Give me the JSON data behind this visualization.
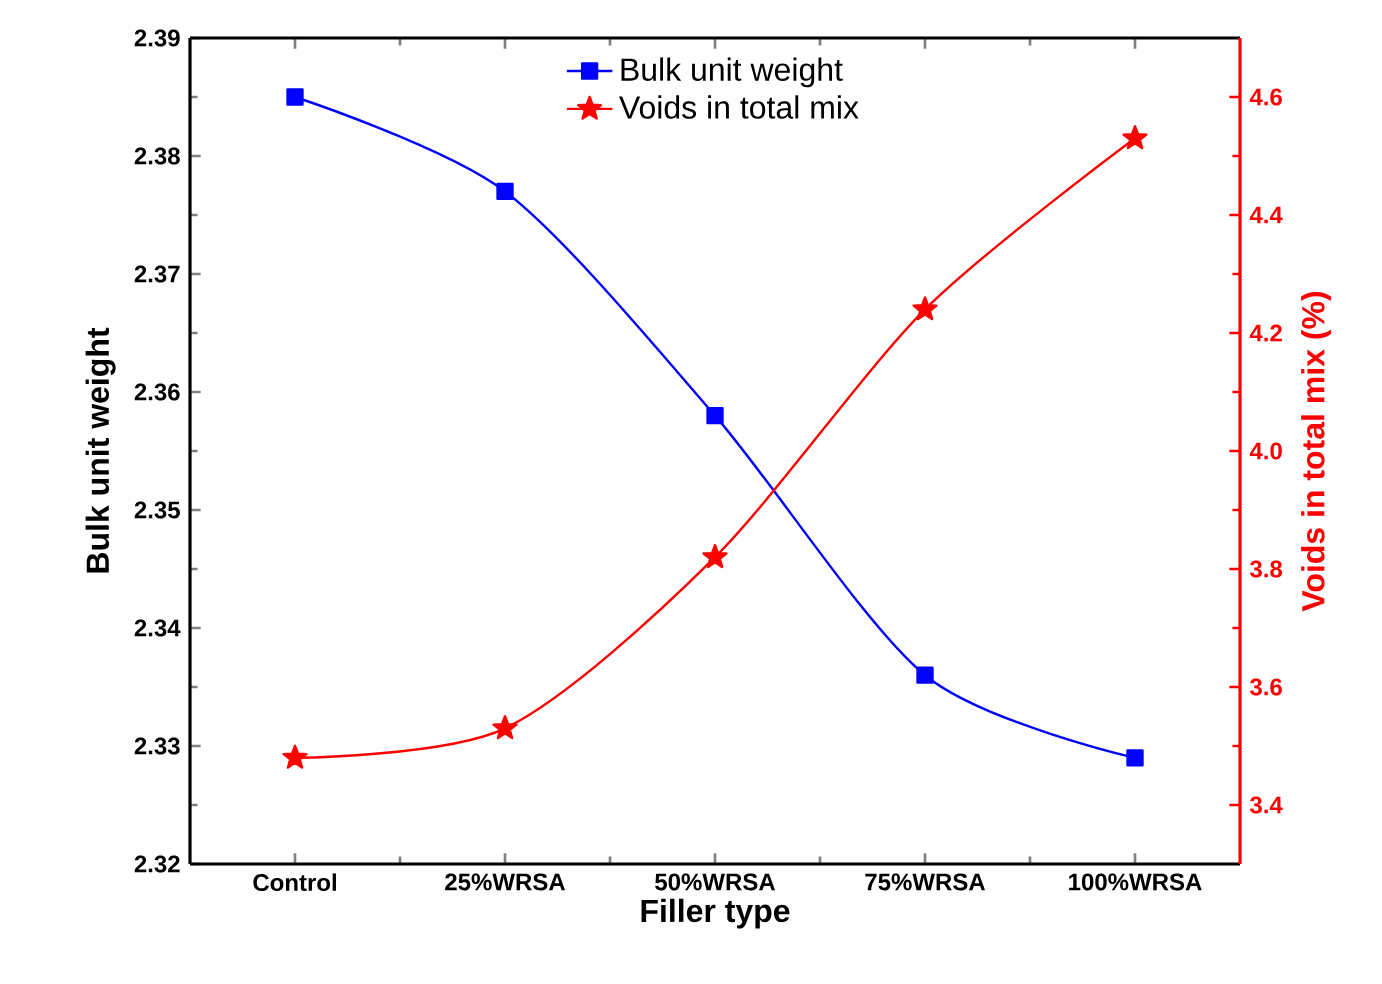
{
  "chart_data": {
    "type": "line",
    "xlabel": "Filler type",
    "ylabel": "Bulk unit weight",
    "y2label": "Voids in total mix (%)",
    "categories": [
      "Control",
      "25%WRSA",
      "50%WRSA",
      "75%WRSA",
      "100%WRSA"
    ],
    "ylim": [
      2.32,
      2.39
    ],
    "yticks": [
      2.32,
      2.33,
      2.34,
      2.35,
      2.36,
      2.37,
      2.38,
      2.39
    ],
    "y2lim": [
      3.3,
      4.7
    ],
    "y2ticks": [
      3.4,
      3.6,
      3.8,
      {
        "value": 4,
        "label": "4.0"
      },
      4.2,
      4.4,
      4.6
    ],
    "legend": "top",
    "series": [
      {
        "name": "Bulk unit weight",
        "color": "#0000ff",
        "marker": "square",
        "values": [
          2.385,
          2.377,
          2.358,
          2.336,
          2.329
        ]
      },
      {
        "name": "Voids in total mix",
        "color": "#ff0000",
        "marker": "star",
        "axis": "y2",
        "values": [
          3.48,
          3.53,
          3.82,
          4.24,
          4.53
        ]
      }
    ]
  }
}
